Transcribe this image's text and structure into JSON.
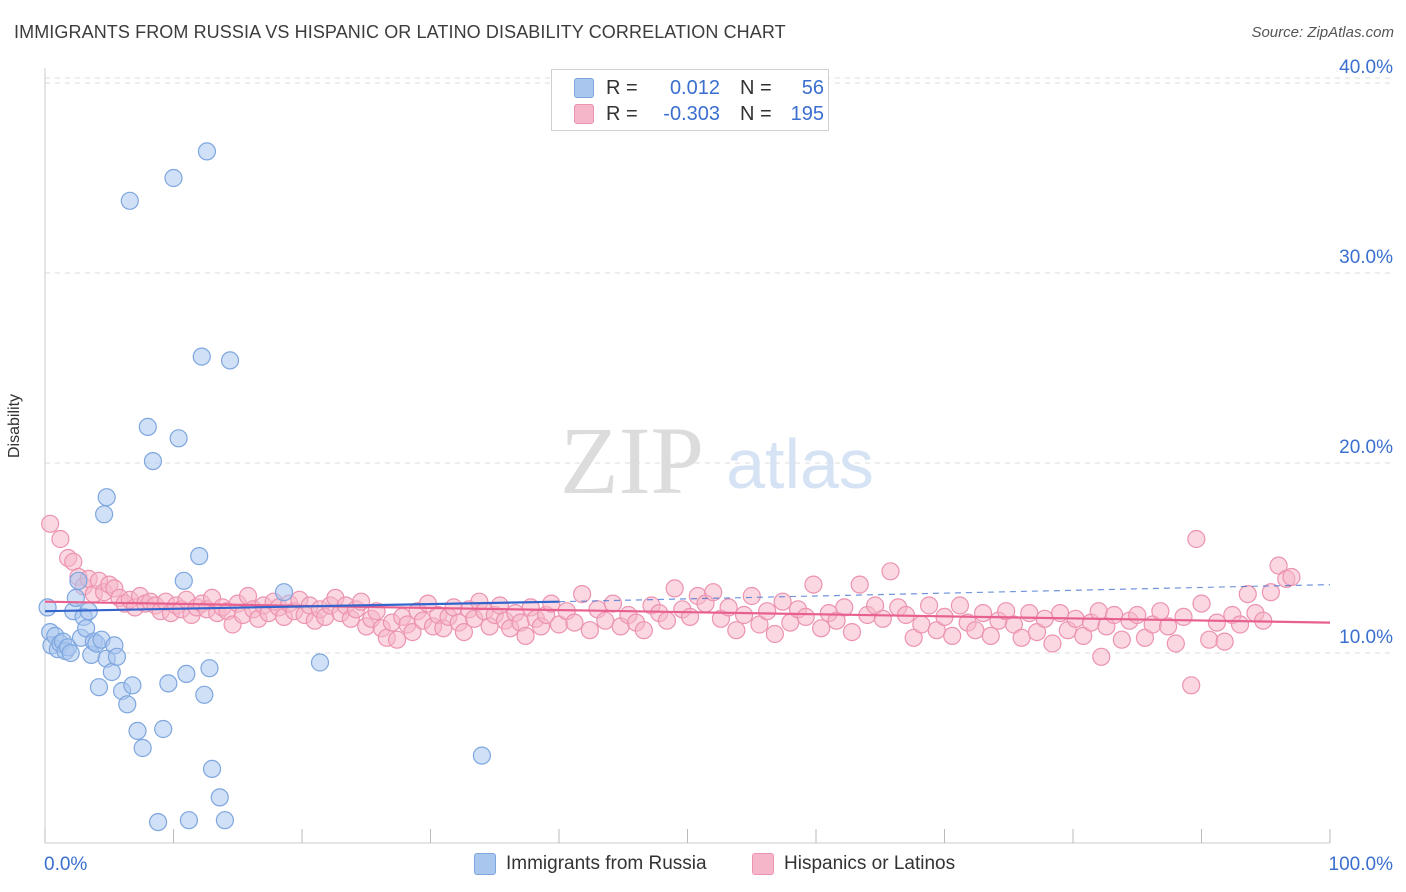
{
  "title": "IMMIGRANTS FROM RUSSIA VS HISPANIC OR LATINO DISABILITY CORRELATION CHART",
  "source": "Source: ZipAtlas.com",
  "watermark": {
    "zip": "ZIP",
    "atlas": "atlas"
  },
  "colors": {
    "blue_fill": "#a9c6ef",
    "blue_stroke": "#7ea6df",
    "blue_line": "#3366cc",
    "pink_fill": "#f5b6c9",
    "pink_stroke": "#ec93b0",
    "pink_line": "#e8608f",
    "tick_label": "#3a6fcf",
    "grid": "#dddddd"
  },
  "legend_top": {
    "rows": [
      {
        "r_label": "R =",
        "r_value": "0.012",
        "n_label": "N =",
        "n_value": "56"
      },
      {
        "r_label": "R =",
        "r_value": "-0.303",
        "n_label": "N =",
        "n_value": "195"
      }
    ]
  },
  "chart_data": {
    "type": "scatter",
    "title": "IMMIGRANTS FROM RUSSIA VS HISPANIC OR LATINO DISABILITY CORRELATION CHART",
    "xlabel": "",
    "ylabel": "Disability",
    "xlim": [
      0,
      100
    ],
    "ylim": [
      0,
      40
    ],
    "x_tick_labels": [
      "0.0%",
      "100.0%"
    ],
    "y_ticks": [
      10,
      20,
      30,
      40
    ],
    "y_tick_labels": [
      "10.0%",
      "20.0%",
      "30.0%",
      "40.0%"
    ],
    "grid": true,
    "legend_position": "bottom",
    "series": [
      {
        "name": "Immigrants from Russia",
        "color": "blue",
        "r": 0.012,
        "n": 56,
        "trend": {
          "x": [
            0,
            40
          ],
          "y": [
            12.2,
            12.7
          ],
          "dashed_extension": {
            "x": [
              40,
              100
            ],
            "y": [
              12.7,
              13.6
            ]
          }
        },
        "points": [
          [
            0.2,
            12.4
          ],
          [
            0.4,
            11.1
          ],
          [
            0.5,
            10.4
          ],
          [
            0.8,
            10.9
          ],
          [
            1.0,
            10.2
          ],
          [
            1.2,
            10.5
          ],
          [
            1.4,
            10.6
          ],
          [
            1.6,
            10.1
          ],
          [
            1.8,
            10.3
          ],
          [
            2.0,
            10.0
          ],
          [
            2.2,
            12.2
          ],
          [
            2.4,
            12.9
          ],
          [
            2.6,
            13.8
          ],
          [
            2.8,
            10.8
          ],
          [
            3.0,
            11.9
          ],
          [
            3.2,
            11.3
          ],
          [
            3.4,
            12.2
          ],
          [
            3.6,
            9.9
          ],
          [
            3.8,
            10.6
          ],
          [
            4.0,
            10.5
          ],
          [
            4.2,
            8.2
          ],
          [
            4.4,
            10.7
          ],
          [
            4.8,
            9.7
          ],
          [
            5.2,
            9.0
          ],
          [
            5.4,
            10.4
          ],
          [
            4.6,
            17.3
          ],
          [
            4.8,
            18.2
          ],
          [
            5.6,
            9.8
          ],
          [
            6.0,
            8.0
          ],
          [
            6.4,
            7.3
          ],
          [
            6.8,
            8.3
          ],
          [
            7.2,
            5.9
          ],
          [
            7.6,
            5.0
          ],
          [
            8.0,
            21.9
          ],
          [
            8.4,
            20.1
          ],
          [
            8.8,
            1.1
          ],
          [
            9.2,
            6.0
          ],
          [
            9.6,
            8.4
          ],
          [
            10.0,
            35.0
          ],
          [
            10.4,
            21.3
          ],
          [
            10.8,
            13.8
          ],
          [
            11.0,
            8.9
          ],
          [
            11.2,
            1.2
          ],
          [
            12.0,
            15.1
          ],
          [
            12.2,
            25.6
          ],
          [
            12.4,
            7.8
          ],
          [
            12.8,
            9.2
          ],
          [
            13.0,
            3.9
          ],
          [
            13.6,
            2.4
          ],
          [
            14.0,
            1.2
          ],
          [
            6.6,
            33.8
          ],
          [
            12.6,
            36.4
          ],
          [
            14.4,
            25.4
          ],
          [
            18.6,
            13.2
          ],
          [
            21.4,
            9.5
          ],
          [
            34.0,
            4.6
          ]
        ]
      },
      {
        "name": "Hispanics or Latinos",
        "color": "pink",
        "r": -0.303,
        "n": 195,
        "trend": {
          "x": [
            0,
            100
          ],
          "y": [
            12.7,
            11.6
          ]
        },
        "points": [
          [
            0.4,
            16.8
          ],
          [
            1.2,
            16.0
          ],
          [
            1.8,
            15.0
          ],
          [
            2.2,
            14.8
          ],
          [
            2.6,
            14.0
          ],
          [
            3.0,
            13.5
          ],
          [
            3.4,
            13.9
          ],
          [
            3.8,
            13.1
          ],
          [
            4.2,
            13.8
          ],
          [
            4.6,
            13.2
          ],
          [
            5.0,
            13.6
          ],
          [
            5.4,
            13.4
          ],
          [
            5.8,
            12.9
          ],
          [
            6.2,
            12.6
          ],
          [
            6.6,
            12.8
          ],
          [
            7.0,
            12.4
          ],
          [
            7.4,
            13.0
          ],
          [
            7.8,
            12.6
          ],
          [
            8.2,
            12.7
          ],
          [
            8.6,
            12.5
          ],
          [
            9.0,
            12.2
          ],
          [
            9.4,
            12.7
          ],
          [
            9.8,
            12.1
          ],
          [
            10.2,
            12.5
          ],
          [
            10.6,
            12.3
          ],
          [
            11.0,
            12.8
          ],
          [
            11.4,
            12.0
          ],
          [
            11.8,
            12.4
          ],
          [
            12.2,
            12.6
          ],
          [
            12.6,
            12.3
          ],
          [
            13.0,
            12.9
          ],
          [
            13.4,
            12.1
          ],
          [
            13.8,
            12.4
          ],
          [
            14.2,
            12.2
          ],
          [
            14.6,
            11.5
          ],
          [
            15.0,
            12.6
          ],
          [
            15.4,
            12.0
          ],
          [
            15.8,
            13.0
          ],
          [
            16.2,
            12.3
          ],
          [
            16.6,
            11.8
          ],
          [
            17.0,
            12.5
          ],
          [
            17.4,
            12.1
          ],
          [
            17.8,
            12.7
          ],
          [
            18.2,
            12.4
          ],
          [
            18.6,
            11.9
          ],
          [
            19.0,
            12.6
          ],
          [
            19.4,
            12.2
          ],
          [
            19.8,
            12.8
          ],
          [
            20.2,
            12.0
          ],
          [
            20.6,
            12.5
          ],
          [
            21.0,
            11.7
          ],
          [
            21.4,
            12.3
          ],
          [
            21.8,
            11.9
          ],
          [
            22.2,
            12.5
          ],
          [
            22.6,
            12.9
          ],
          [
            23.0,
            12.1
          ],
          [
            23.4,
            12.5
          ],
          [
            23.8,
            11.8
          ],
          [
            24.2,
            12.3
          ],
          [
            24.6,
            12.7
          ],
          [
            25.0,
            11.4
          ],
          [
            25.4,
            11.8
          ],
          [
            25.8,
            12.2
          ],
          [
            26.2,
            11.3
          ],
          [
            26.6,
            10.8
          ],
          [
            27.0,
            11.6
          ],
          [
            27.4,
            10.7
          ],
          [
            27.8,
            11.9
          ],
          [
            28.2,
            11.5
          ],
          [
            28.6,
            11.1
          ],
          [
            29.0,
            12.2
          ],
          [
            29.4,
            11.7
          ],
          [
            29.8,
            12.6
          ],
          [
            30.2,
            11.4
          ],
          [
            30.6,
            12.0
          ],
          [
            31.0,
            11.3
          ],
          [
            31.4,
            11.9
          ],
          [
            31.8,
            12.4
          ],
          [
            32.2,
            11.6
          ],
          [
            32.6,
            11.1
          ],
          [
            33.0,
            12.3
          ],
          [
            33.4,
            11.8
          ],
          [
            33.8,
            12.7
          ],
          [
            34.2,
            12.2
          ],
          [
            34.6,
            11.4
          ],
          [
            35.0,
            12.0
          ],
          [
            35.4,
            12.5
          ],
          [
            35.8,
            11.7
          ],
          [
            36.2,
            11.3
          ],
          [
            36.6,
            12.1
          ],
          [
            37.0,
            11.6
          ],
          [
            37.4,
            10.9
          ],
          [
            37.8,
            12.4
          ],
          [
            38.2,
            11.8
          ],
          [
            38.6,
            11.4
          ],
          [
            39.0,
            12.0
          ],
          [
            39.4,
            12.6
          ],
          [
            40.0,
            11.5
          ],
          [
            40.6,
            12.2
          ],
          [
            41.2,
            11.6
          ],
          [
            41.8,
            13.1
          ],
          [
            42.4,
            11.2
          ],
          [
            43.0,
            12.3
          ],
          [
            43.6,
            11.7
          ],
          [
            44.2,
            12.6
          ],
          [
            44.8,
            11.4
          ],
          [
            45.4,
            12.0
          ],
          [
            46.0,
            11.6
          ],
          [
            46.6,
            11.2
          ],
          [
            47.2,
            12.5
          ],
          [
            47.8,
            12.1
          ],
          [
            48.4,
            11.7
          ],
          [
            49.0,
            13.4
          ],
          [
            49.6,
            12.3
          ],
          [
            50.2,
            11.9
          ],
          [
            50.8,
            13.0
          ],
          [
            51.4,
            12.6
          ],
          [
            52.0,
            13.2
          ],
          [
            52.6,
            11.8
          ],
          [
            53.2,
            12.4
          ],
          [
            53.8,
            11.2
          ],
          [
            54.4,
            12.0
          ],
          [
            55.0,
            13.0
          ],
          [
            55.6,
            11.5
          ],
          [
            56.2,
            12.2
          ],
          [
            56.8,
            11.0
          ],
          [
            57.4,
            12.7
          ],
          [
            58.0,
            11.6
          ],
          [
            58.6,
            12.3
          ],
          [
            59.2,
            11.9
          ],
          [
            59.8,
            13.6
          ],
          [
            60.4,
            11.3
          ],
          [
            61.0,
            12.1
          ],
          [
            61.6,
            11.7
          ],
          [
            62.2,
            12.4
          ],
          [
            62.8,
            11.1
          ],
          [
            63.4,
            13.6
          ],
          [
            64.0,
            12.0
          ],
          [
            64.6,
            12.5
          ],
          [
            65.2,
            11.8
          ],
          [
            65.8,
            14.3
          ],
          [
            66.4,
            12.4
          ],
          [
            67.0,
            12.0
          ],
          [
            67.6,
            10.8
          ],
          [
            68.2,
            11.5
          ],
          [
            68.8,
            12.5
          ],
          [
            69.4,
            11.2
          ],
          [
            70.0,
            11.9
          ],
          [
            70.6,
            10.9
          ],
          [
            71.2,
            12.5
          ],
          [
            71.8,
            11.6
          ],
          [
            72.4,
            11.2
          ],
          [
            73.0,
            12.1
          ],
          [
            73.6,
            10.9
          ],
          [
            74.2,
            11.7
          ],
          [
            74.8,
            12.2
          ],
          [
            75.4,
            11.5
          ],
          [
            76.0,
            10.8
          ],
          [
            76.6,
            12.1
          ],
          [
            77.2,
            11.1
          ],
          [
            77.8,
            11.8
          ],
          [
            78.4,
            10.5
          ],
          [
            79.0,
            12.1
          ],
          [
            79.6,
            11.2
          ],
          [
            80.2,
            11.8
          ],
          [
            80.8,
            10.9
          ],
          [
            81.4,
            11.6
          ],
          [
            82.0,
            12.2
          ],
          [
            82.6,
            11.4
          ],
          [
            83.2,
            12.0
          ],
          [
            83.8,
            10.7
          ],
          [
            84.4,
            11.7
          ],
          [
            85.0,
            12.0
          ],
          [
            85.6,
            10.8
          ],
          [
            86.2,
            11.5
          ],
          [
            86.8,
            12.2
          ],
          [
            87.4,
            11.4
          ],
          [
            88.0,
            10.5
          ],
          [
            88.6,
            11.9
          ],
          [
            89.2,
            8.3
          ],
          [
            89.6,
            16.0
          ],
          [
            90.0,
            12.6
          ],
          [
            90.6,
            10.7
          ],
          [
            91.2,
            11.6
          ],
          [
            91.8,
            10.6
          ],
          [
            92.4,
            12.0
          ],
          [
            93.0,
            11.5
          ],
          [
            93.6,
            13.1
          ],
          [
            94.2,
            12.1
          ],
          [
            94.8,
            11.7
          ],
          [
            95.4,
            13.2
          ],
          [
            96.0,
            14.6
          ],
          [
            96.6,
            13.9
          ],
          [
            97.0,
            14.0
          ],
          [
            82.2,
            9.8
          ]
        ]
      }
    ]
  }
}
